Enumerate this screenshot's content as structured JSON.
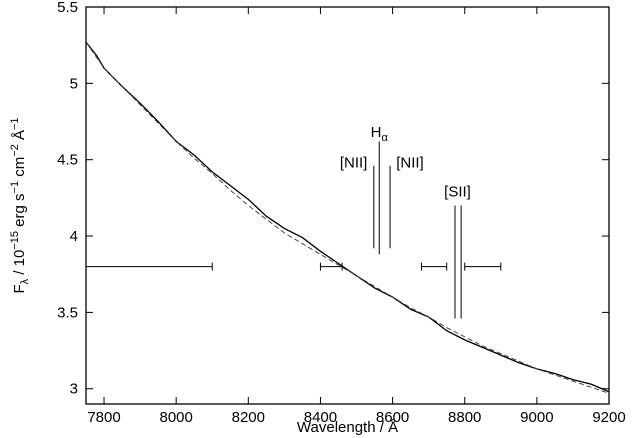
{
  "chart_data": {
    "type": "line",
    "xlabel": {
      "text": "Wavelength / ",
      "unit": "Å"
    },
    "ylabel": {
      "base": "F",
      "sub": "λ",
      "mid": " / 10",
      "exp1": "−15",
      "mid2": " erg s",
      "exp2": "−1",
      "mid3": " cm",
      "exp3": "−2",
      "mid4": " Å",
      "exp4": "−1"
    },
    "xlim": [
      7750,
      9200
    ],
    "ylim": [
      2.9,
      5.5
    ],
    "xticks": [
      7800,
      8000,
      8200,
      8400,
      8600,
      8800,
      9000,
      9200
    ],
    "yticks": [
      3,
      3.5,
      4,
      4.5,
      5,
      5.5
    ],
    "ytick_labels": [
      "3",
      "3.5",
      "4",
      "4.5",
      "5",
      "5.5"
    ],
    "grid": false,
    "legend": "none",
    "series": [
      {
        "kind": "observed",
        "x": [
          7750,
          7780,
          7800,
          7850,
          7900,
          7950,
          8000,
          8050,
          8100,
          8150,
          8200,
          8250,
          8300,
          8350,
          8400,
          8450,
          8500,
          8550,
          8600,
          8650,
          8700,
          8750,
          8800,
          8850,
          8900,
          8950,
          9000,
          9050,
          9100,
          9150,
          9200
        ],
        "y": [
          5.27,
          5.18,
          5.1,
          4.98,
          4.87,
          4.75,
          4.62,
          4.53,
          4.42,
          4.33,
          4.24,
          4.13,
          4.05,
          3.99,
          3.9,
          3.82,
          3.74,
          3.66,
          3.6,
          3.52,
          3.47,
          3.38,
          3.32,
          3.27,
          3.22,
          3.17,
          3.13,
          3.1,
          3.06,
          3.03,
          2.98
        ]
      },
      {
        "kind": "model",
        "x": [
          7750,
          7800,
          7850,
          7900,
          7950,
          8000,
          8050,
          8100,
          8150,
          8200,
          8250,
          8300,
          8350,
          8400,
          8450,
          8500,
          8550,
          8600,
          8650,
          8700,
          8750,
          8800,
          8850,
          8900,
          8950,
          9000,
          9050,
          9100,
          9150,
          9200
        ],
        "y": [
          5.27,
          5.1,
          4.98,
          4.86,
          4.74,
          4.62,
          4.51,
          4.41,
          4.3,
          4.2,
          4.11,
          4.02,
          3.95,
          3.88,
          3.81,
          3.74,
          3.67,
          3.6,
          3.53,
          3.47,
          3.4,
          3.34,
          3.28,
          3.23,
          3.18,
          3.13,
          3.09,
          3.05,
          3.01,
          2.97
        ]
      }
    ],
    "intervals": [
      {
        "x0": 7750,
        "x1": 8100,
        "y": 3.8
      },
      {
        "x0": 8400,
        "x1": 8460,
        "y": 3.8
      },
      {
        "x0": 8680,
        "x1": 8750,
        "y": 3.8
      },
      {
        "x0": 8800,
        "x1": 8900,
        "y": 3.8
      }
    ],
    "lines": [
      {
        "name": "[NII]",
        "x": 8548,
        "y0": 3.92,
        "y1": 4.46,
        "label_x": 8530,
        "label_y": 4.45,
        "anchor": "end"
      },
      {
        "name": "H",
        "sub": "α",
        "x": 8563,
        "y0": 3.88,
        "y1": 4.62,
        "label_x": 8563,
        "label_y": 4.65,
        "anchor": "middle"
      },
      {
        "name": "[NII]",
        "x": 8593,
        "y0": 3.92,
        "y1": 4.46,
        "label_x": 8610,
        "label_y": 4.45,
        "anchor": "start"
      },
      {
        "name": "[SII]",
        "x": 8773,
        "y0": 3.46,
        "y1": 4.2,
        "label_x": 8780,
        "label_y": 4.26,
        "anchor": "middle"
      },
      {
        "name": "",
        "x": 8790,
        "y0": 3.46,
        "y1": 4.2,
        "label_x": 8790,
        "label_y": 4.2,
        "anchor": "middle"
      }
    ],
    "colors": {
      "observed": "#000000",
      "model": "#444444"
    }
  }
}
